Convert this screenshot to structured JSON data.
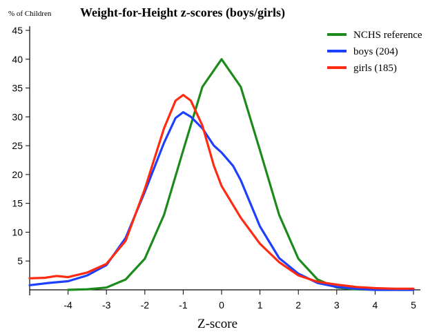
{
  "chart_data": {
    "type": "line",
    "title": "Weight-for-Height z-scores (boys/girls)",
    "ylabel": "% of Children",
    "xlabel": "Z-score",
    "xlim": [
      -5,
      5
    ],
    "ylim": [
      0,
      45
    ],
    "x_ticks": [
      -4,
      -3,
      -2,
      -1,
      0,
      1,
      2,
      3,
      4,
      5
    ],
    "y_ticks": [
      5,
      10,
      15,
      20,
      25,
      30,
      35,
      40,
      45
    ],
    "legend_position": "top-right",
    "grid": false,
    "series": [
      {
        "name": "NCHS reference",
        "color": "#1a8a1a",
        "points": [
          [
            -4,
            0
          ],
          [
            -3.5,
            0.1
          ],
          [
            -3,
            0.4
          ],
          [
            -2.5,
            1.8
          ],
          [
            -2,
            5.4
          ],
          [
            -1.5,
            13
          ],
          [
            -1,
            24.2
          ],
          [
            -0.5,
            35.2
          ],
          [
            0,
            40
          ],
          [
            0.5,
            35.2
          ],
          [
            1,
            24.2
          ],
          [
            1.5,
            13
          ],
          [
            2,
            5.4
          ],
          [
            2.5,
            1.8
          ],
          [
            3,
            0.4
          ],
          [
            3.5,
            0.1
          ],
          [
            4,
            0
          ],
          [
            5,
            0
          ]
        ]
      },
      {
        "name": "boys (204)",
        "color": "#1f3fff",
        "points": [
          [
            -5,
            0.8
          ],
          [
            -4.5,
            1.2
          ],
          [
            -4,
            1.5
          ],
          [
            -3.5,
            2.5
          ],
          [
            -3,
            4.3
          ],
          [
            -2.5,
            9
          ],
          [
            -2,
            17
          ],
          [
            -1.5,
            25.5
          ],
          [
            -1.2,
            29.8
          ],
          [
            -1,
            30.8
          ],
          [
            -0.8,
            30
          ],
          [
            -0.5,
            28
          ],
          [
            -0.2,
            25
          ],
          [
            0,
            23.8
          ],
          [
            0.3,
            21.5
          ],
          [
            0.5,
            19
          ],
          [
            1,
            11
          ],
          [
            1.5,
            5.5
          ],
          [
            2,
            2.8
          ],
          [
            2.5,
            1.2
          ],
          [
            3,
            0.5
          ],
          [
            3.5,
            0.2
          ],
          [
            4,
            0
          ],
          [
            5,
            0
          ]
        ]
      },
      {
        "name": "girls (185)",
        "color": "#ff2a10",
        "points": [
          [
            -5,
            2
          ],
          [
            -4.6,
            2.1
          ],
          [
            -4.3,
            2.4
          ],
          [
            -4,
            2.2
          ],
          [
            -3.5,
            3
          ],
          [
            -3,
            4.5
          ],
          [
            -2.5,
            8.5
          ],
          [
            -2,
            17.5
          ],
          [
            -1.5,
            28
          ],
          [
            -1.2,
            32.8
          ],
          [
            -1,
            33.8
          ],
          [
            -0.8,
            32.8
          ],
          [
            -0.5,
            28.5
          ],
          [
            -0.2,
            21.5
          ],
          [
            0,
            18
          ],
          [
            0.5,
            12.5
          ],
          [
            1,
            8
          ],
          [
            1.5,
            4.8
          ],
          [
            2,
            2.5
          ],
          [
            2.5,
            1.4
          ],
          [
            3,
            0.9
          ],
          [
            3.5,
            0.5
          ],
          [
            4,
            0.3
          ],
          [
            4.5,
            0.2
          ],
          [
            5,
            0.2
          ]
        ]
      }
    ]
  }
}
